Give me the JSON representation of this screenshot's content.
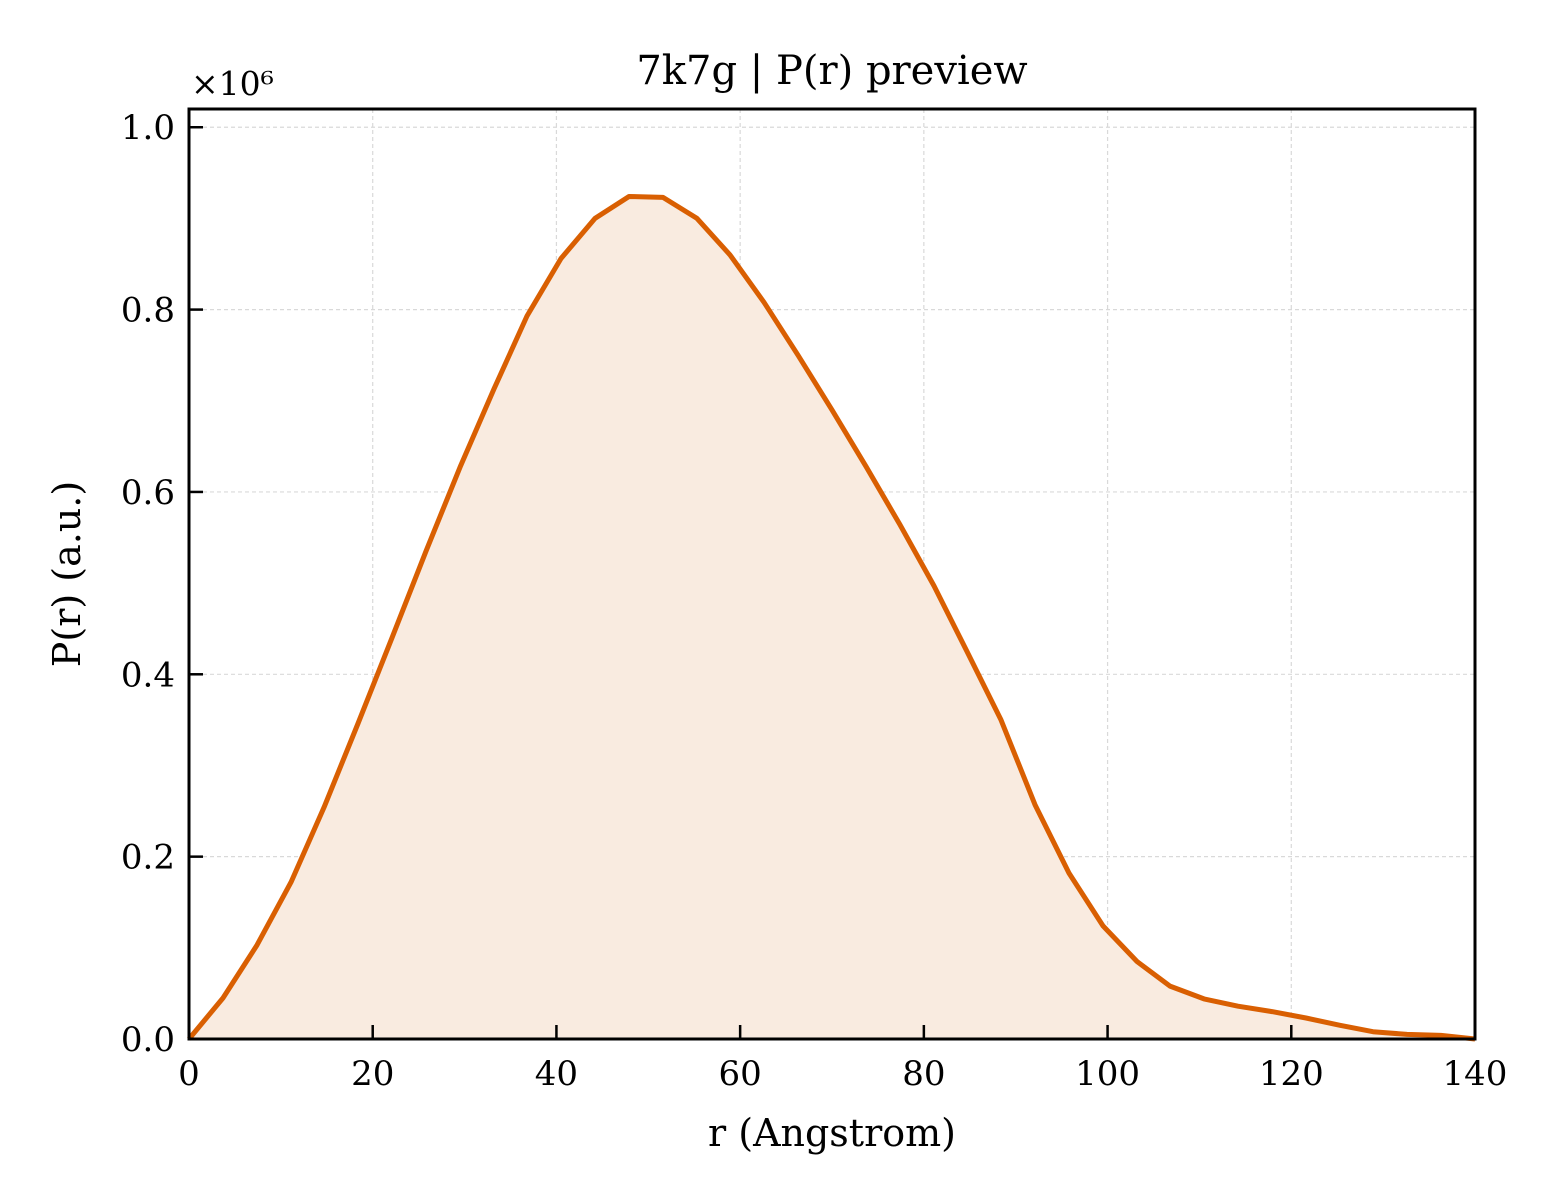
{
  "chart_data": {
    "type": "area",
    "title": "7k7g | P(r) preview",
    "xlabel": "r (Angstrom)",
    "ylabel": "P(r) (a.u.)",
    "y_multiplier_label": "×10⁶",
    "xlim": [
      0,
      140
    ],
    "ylim": [
      0,
      1.02
    ],
    "xticks": [
      0,
      20,
      40,
      60,
      80,
      100,
      120,
      140
    ],
    "xtick_labels": [
      "0",
      "20",
      "40",
      "60",
      "80",
      "100",
      "120",
      "140"
    ],
    "yticks": [
      0,
      0.2,
      0.4,
      0.6,
      0.8,
      1.0
    ],
    "ytick_labels": [
      "0.0",
      "0.2",
      "0.4",
      "0.6",
      "0.8",
      "1.0"
    ],
    "grid": true,
    "series": [
      {
        "color": "#d95f02",
        "fill_color": "#f9ebe0",
        "x": [
          0,
          3.7,
          7.4,
          11.1,
          14.7,
          18.4,
          22.1,
          25.8,
          29.5,
          33.2,
          36.8,
          40.5,
          44.2,
          47.9,
          51.6,
          55.3,
          58.9,
          62.6,
          66.3,
          70.0,
          73.7,
          77.4,
          81.1,
          84.7,
          88.4,
          92.1,
          95.8,
          99.5,
          103.2,
          106.8,
          110.5,
          114.2,
          117.9,
          121.6,
          125.3,
          128.9,
          132.6,
          136.3,
          140.0
        ],
        "y": [
          0.0,
          0.045,
          0.103,
          0.172,
          0.254,
          0.346,
          0.44,
          0.535,
          0.627,
          0.713,
          0.793,
          0.856,
          0.9,
          0.924,
          0.923,
          0.9,
          0.86,
          0.808,
          0.75,
          0.69,
          0.628,
          0.564,
          0.497,
          0.425,
          0.35,
          0.257,
          0.182,
          0.124,
          0.085,
          0.058,
          0.044,
          0.036,
          0.03,
          0.023,
          0.015,
          0.008,
          0.005,
          0.004,
          0.0
        ]
      }
    ]
  }
}
